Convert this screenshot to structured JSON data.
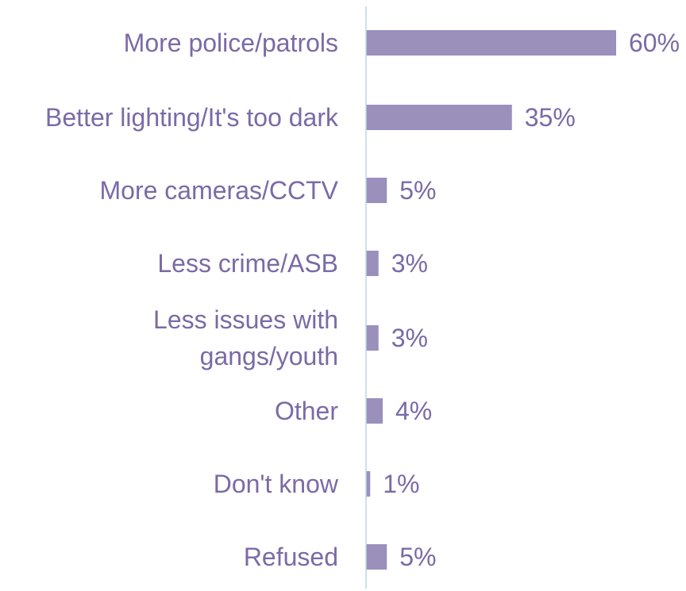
{
  "chart_data": {
    "type": "bar",
    "orientation": "horizontal",
    "categories": [
      [
        "More police/patrols"
      ],
      [
        "Better lighting/It's too dark"
      ],
      [
        "More cameras/CCTV"
      ],
      [
        "Less crime/ASB"
      ],
      [
        "Less issues with",
        "gangs/youth"
      ],
      [
        "Other"
      ],
      [
        "Don't know"
      ],
      [
        "Refused"
      ]
    ],
    "values": [
      60,
      35,
      5,
      3,
      3,
      4,
      1,
      5
    ],
    "value_labels": [
      "60%",
      "35%",
      "5%",
      "3%",
      "3%",
      "4%",
      "1%",
      "5%"
    ],
    "unit": "%",
    "xlim": [
      0,
      60
    ],
    "grid": false,
    "legend": "none",
    "colors": {
      "bar": "#9b8fbc",
      "axis": "#bcd7e6",
      "text": "#7b6aa6"
    }
  }
}
